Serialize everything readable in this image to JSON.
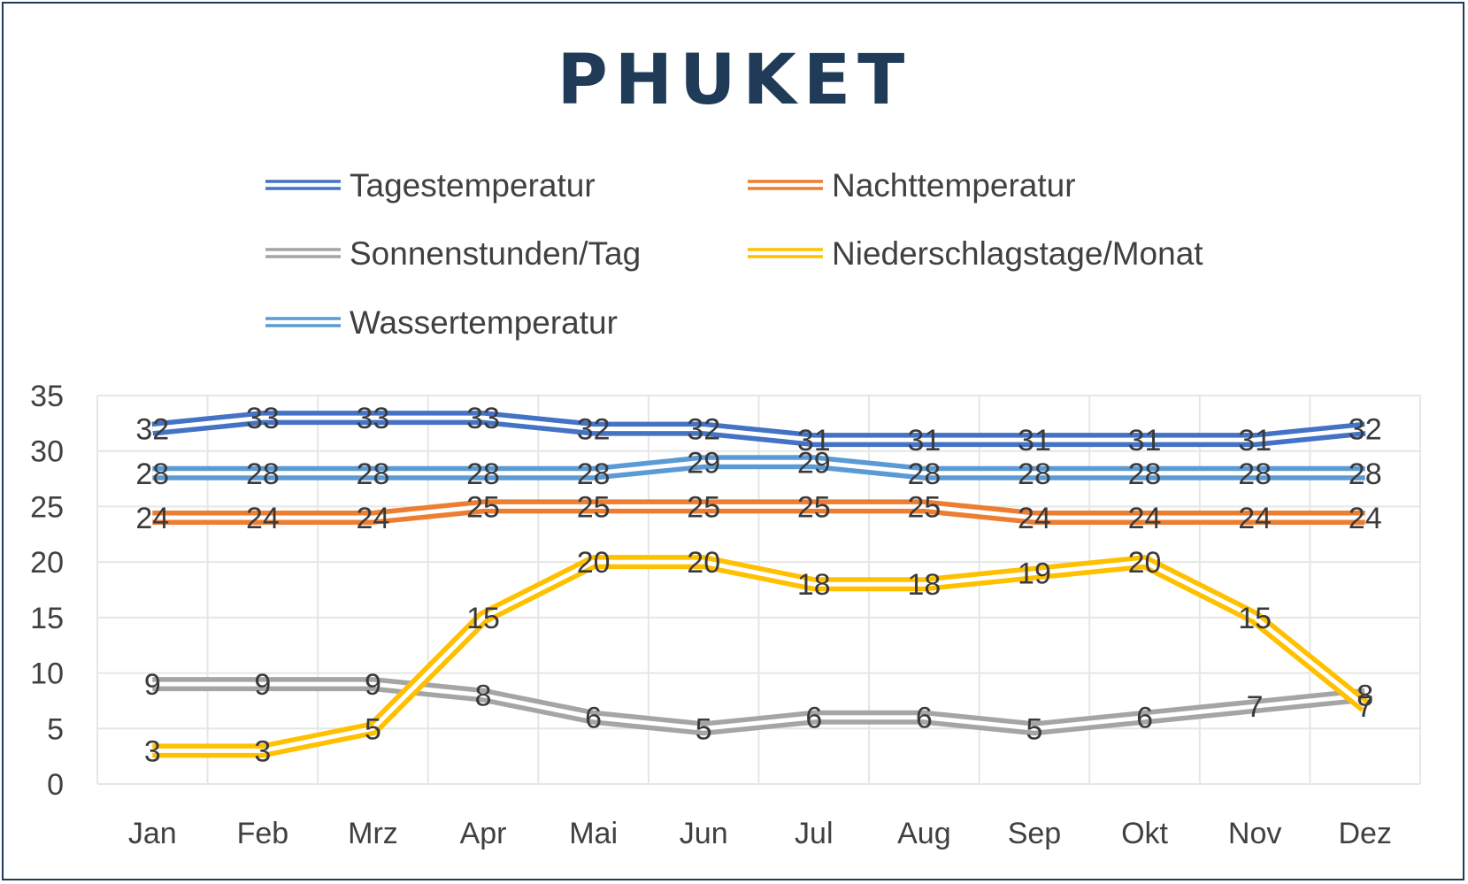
{
  "chart_data": {
    "type": "line",
    "title": "PHUKET",
    "categories": [
      "Jan",
      "Feb",
      "Mrz",
      "Apr",
      "Mai",
      "Jun",
      "Jul",
      "Aug",
      "Sep",
      "Okt",
      "Nov",
      "Dez"
    ],
    "ylim": [
      0,
      35
    ],
    "yticks": [
      0,
      5,
      10,
      15,
      20,
      25,
      30,
      35
    ],
    "grid": true,
    "legend_position": "top",
    "series": [
      {
        "name": "Tagestemperatur",
        "color": "#4472c4",
        "values": [
          32,
          33,
          33,
          33,
          32,
          32,
          31,
          31,
          31,
          31,
          31,
          32
        ]
      },
      {
        "name": "Nachttemperatur",
        "color": "#ed7d31",
        "values": [
          24,
          24,
          24,
          25,
          25,
          25,
          25,
          25,
          24,
          24,
          24,
          24
        ]
      },
      {
        "name": "Sonnenstunden/Tag",
        "color": "#a5a5a5",
        "values": [
          9,
          9,
          9,
          8,
          6,
          5,
          6,
          6,
          5,
          6,
          7,
          8
        ]
      },
      {
        "name": "Niederschlagstage/Monat",
        "color": "#ffc000",
        "values": [
          3,
          3,
          5,
          15,
          20,
          20,
          18,
          18,
          19,
          20,
          15,
          7
        ]
      },
      {
        "name": "Wassertemperatur",
        "color": "#5b9bd5",
        "values": [
          28,
          28,
          28,
          28,
          28,
          29,
          29,
          28,
          28,
          28,
          28,
          28
        ]
      }
    ]
  }
}
